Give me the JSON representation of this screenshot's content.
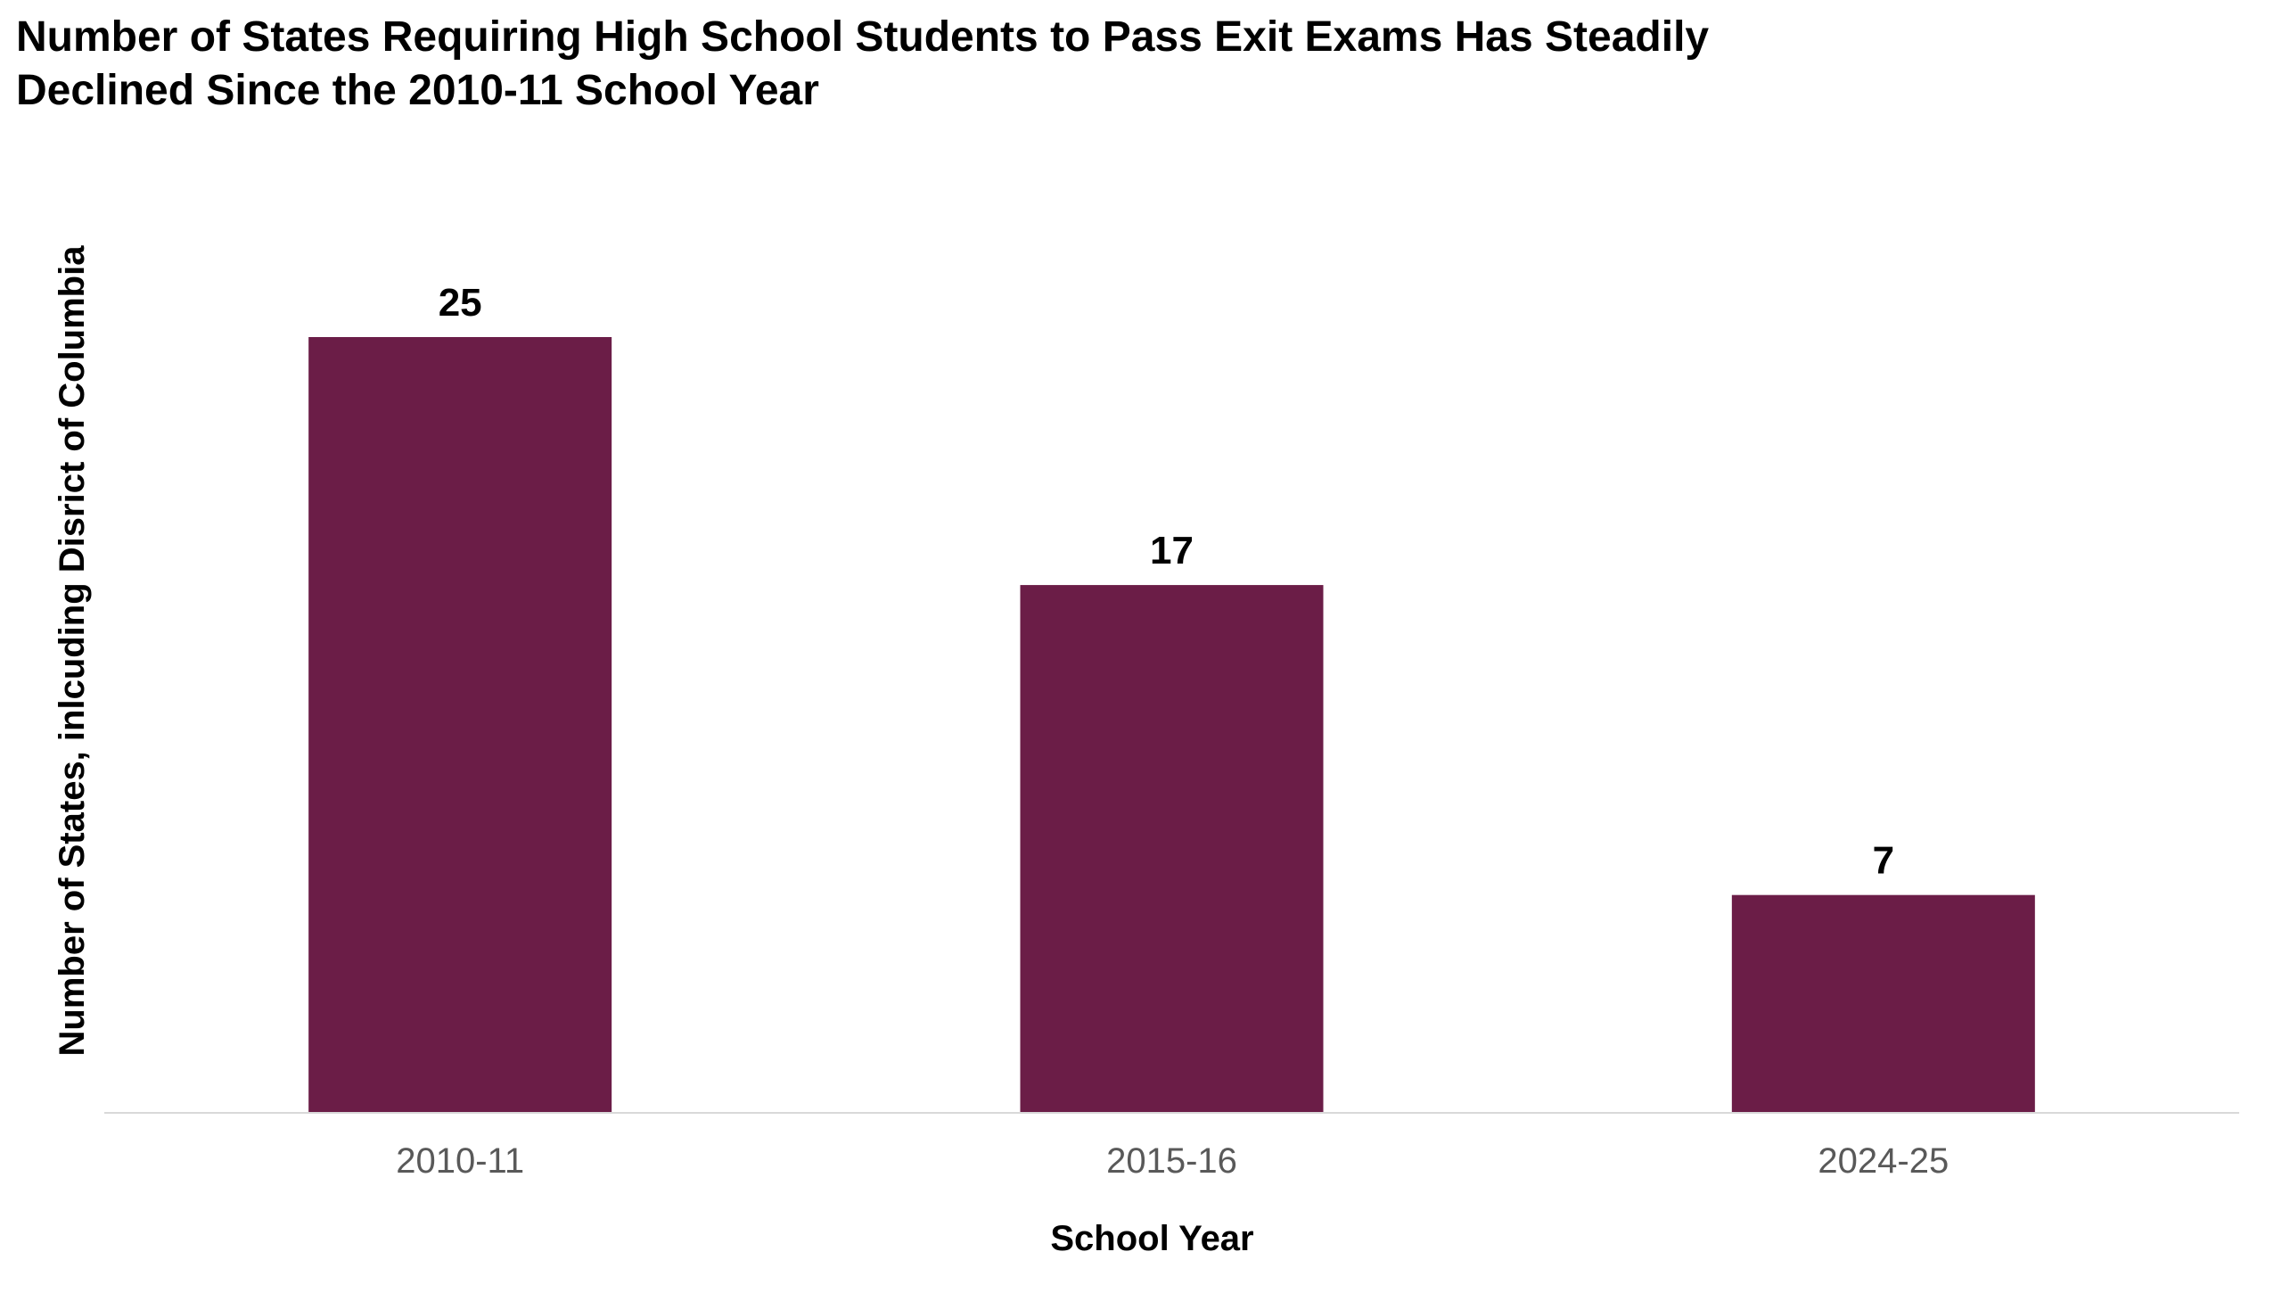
{
  "chart_data": {
    "type": "bar",
    "title": "Number of States Requiring High School Students to Pass Exit Exams Has Steadily Declined Since the 2010-11 School Year",
    "xlabel": "School Year",
    "ylabel": "Number of States, inlcuding Disrict of Columbia",
    "categories": [
      "2010-11",
      "2015-16",
      "2024-25"
    ],
    "values": [
      25,
      17,
      7
    ],
    "data_labels": [
      "25",
      "17",
      "7"
    ],
    "ylim": [
      0,
      25
    ],
    "grid": false,
    "legend": "none",
    "bar_color": "#6b1d47",
    "axis_line_color": "#d9d9d9"
  }
}
